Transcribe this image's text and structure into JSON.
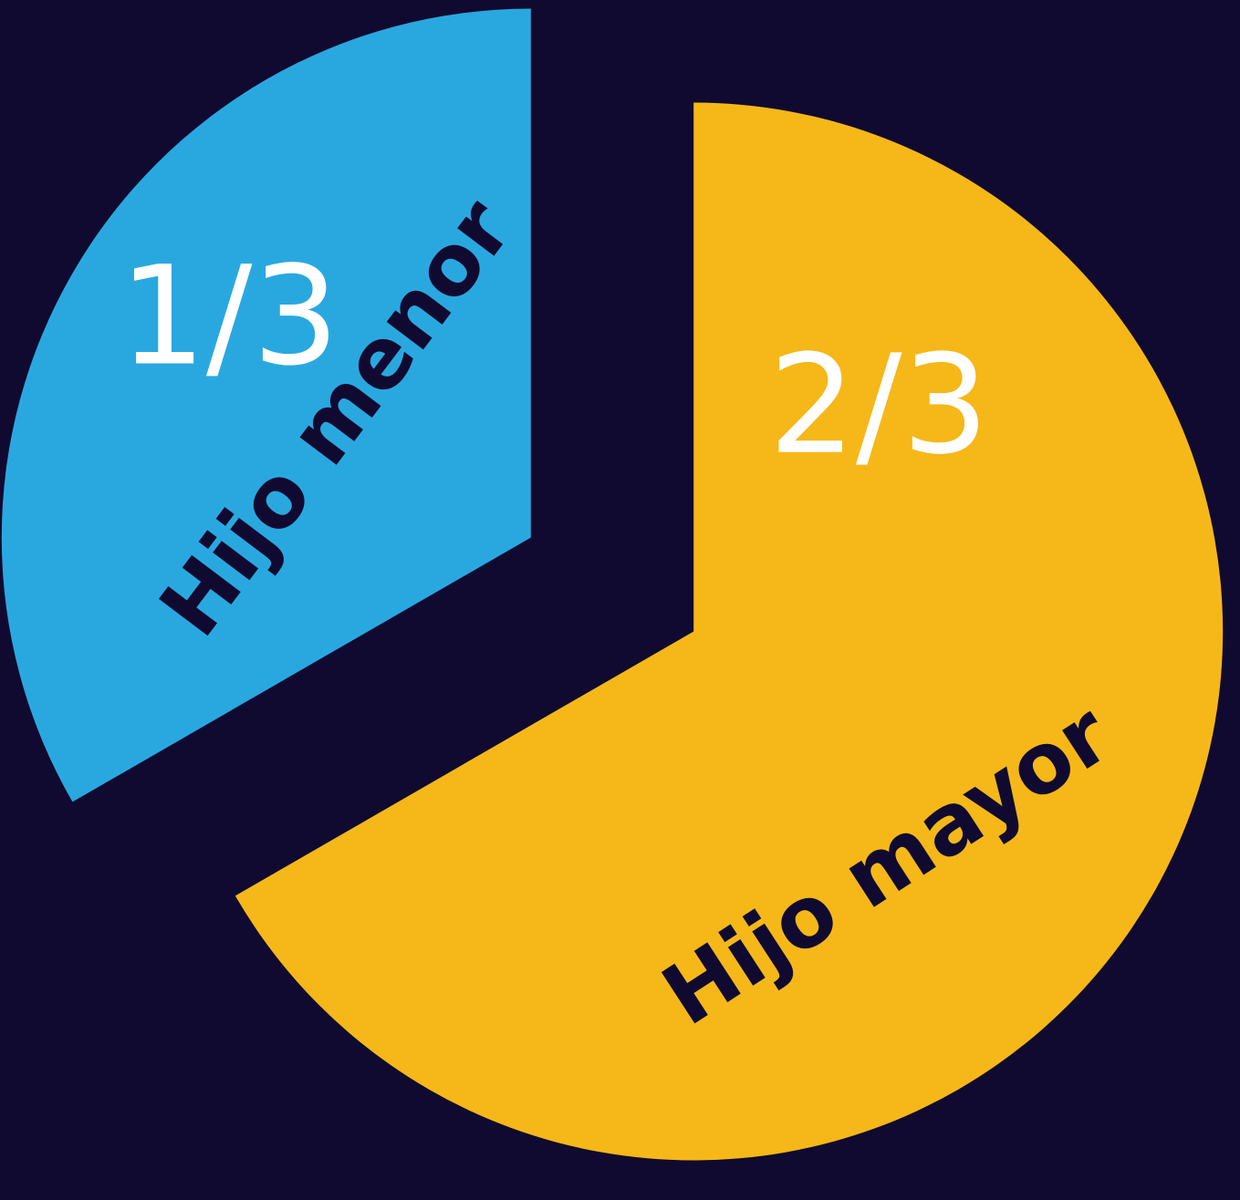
{
  "chart_data": {
    "type": "pie",
    "categories": [
      "Hijo menor",
      "Hijo mayor"
    ],
    "values": [
      0.3333,
      0.6667
    ],
    "value_labels": [
      "1/3",
      "2/3"
    ],
    "colors": [
      "#29a8e0",
      "#f5b818"
    ],
    "start_angle": 90,
    "direction": "counterclockwise",
    "exploded": true
  }
}
